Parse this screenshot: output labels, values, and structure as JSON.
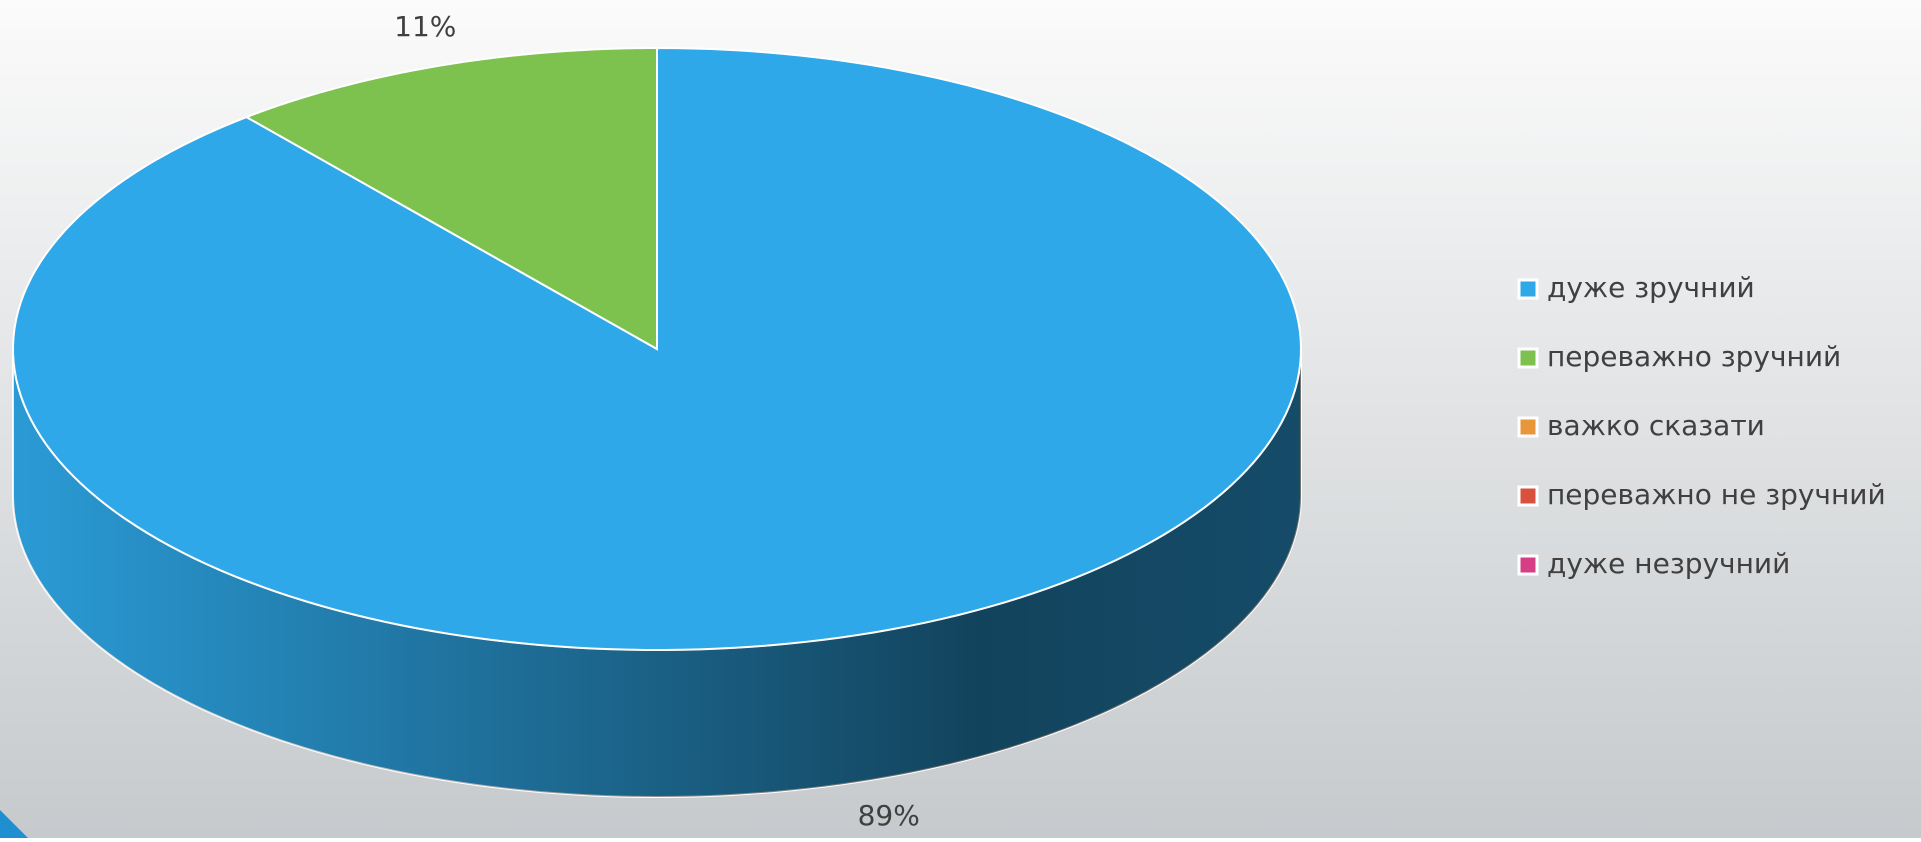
{
  "chart_data": {
    "type": "pie",
    "categories": [
      "дуже зручний",
      "переважно зручний",
      "важко сказати",
      "переважно не зручний",
      "дуже незручний"
    ],
    "values": [
      89,
      11,
      0,
      0,
      0
    ],
    "value_labels": [
      "89%",
      "11%",
      null,
      null,
      null
    ],
    "colors": [
      "#2ea8e8",
      "#7dc24f",
      "#e8963a",
      "#d9503f",
      "#d63e86"
    ],
    "legend": "right"
  }
}
